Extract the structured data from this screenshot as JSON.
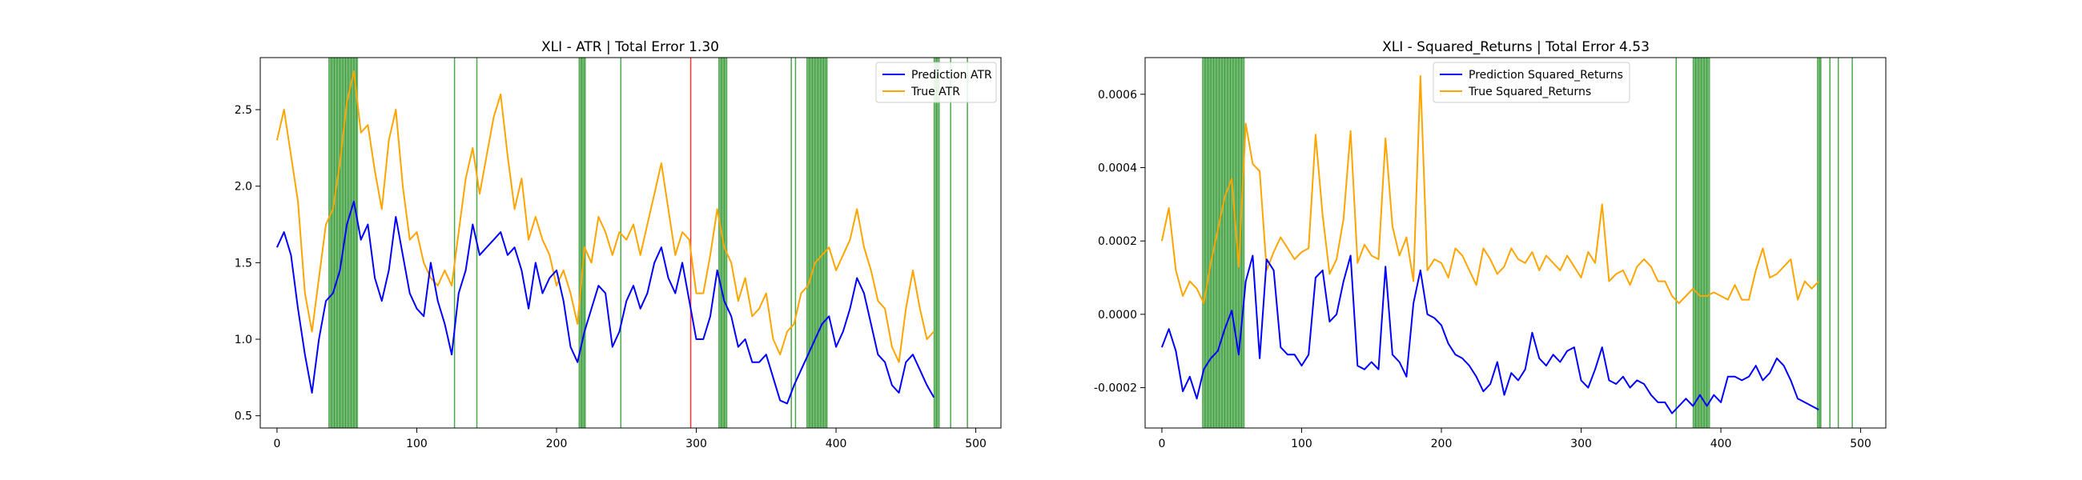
{
  "chart_data": [
    {
      "type": "line",
      "title": "XLI - ATR | Total Error 1.30",
      "xlabel": "",
      "ylabel": "",
      "xlim": [
        -12,
        518
      ],
      "ylim": [
        0.42,
        2.84
      ],
      "xticks": [
        0,
        100,
        200,
        300,
        400,
        500
      ],
      "yticks": [
        0.5,
        1.0,
        1.5,
        2.0,
        2.5
      ],
      "ytick_format": "1",
      "grid": false,
      "legend": "top-right",
      "colors": {
        "prediction": "#0000ff",
        "true": "#ffa500",
        "green_marker": "#008000",
        "red_marker": "#ff0000"
      },
      "green_bands": [
        [
          37,
          58
        ],
        [
          216,
          221
        ],
        [
          316,
          322
        ],
        [
          379,
          394
        ],
        [
          470,
          474
        ]
      ],
      "green_lines": [
        127,
        143,
        246,
        368,
        371,
        482,
        494
      ],
      "red_lines": [
        296
      ],
      "series": [
        {
          "name": "Prediction ATR",
          "color": "#0000ff",
          "x": [
            0,
            5,
            10,
            15,
            20,
            25,
            30,
            35,
            40,
            45,
            50,
            55,
            60,
            65,
            70,
            75,
            80,
            85,
            90,
            95,
            100,
            105,
            110,
            115,
            120,
            125,
            130,
            135,
            140,
            145,
            150,
            155,
            160,
            165,
            170,
            175,
            180,
            185,
            190,
            195,
            200,
            205,
            210,
            215,
            220,
            225,
            230,
            235,
            240,
            245,
            250,
            255,
            260,
            265,
            270,
            275,
            280,
            285,
            290,
            295,
            300,
            305,
            310,
            315,
            320,
            325,
            330,
            335,
            340,
            345,
            350,
            355,
            360,
            365,
            370,
            375,
            380,
            385,
            390,
            395,
            400,
            405,
            410,
            415,
            420,
            425,
            430,
            435,
            440,
            445,
            450,
            455,
            460,
            465,
            470
          ],
          "values": [
            1.6,
            1.7,
            1.55,
            1.2,
            0.9,
            0.65,
            1.0,
            1.25,
            1.3,
            1.45,
            1.75,
            1.9,
            1.65,
            1.75,
            1.4,
            1.25,
            1.45,
            1.8,
            1.55,
            1.3,
            1.2,
            1.15,
            1.5,
            1.25,
            1.1,
            0.9,
            1.3,
            1.45,
            1.75,
            1.55,
            1.6,
            1.65,
            1.7,
            1.55,
            1.6,
            1.45,
            1.2,
            1.5,
            1.3,
            1.4,
            1.45,
            1.25,
            0.95,
            0.85,
            1.05,
            1.2,
            1.35,
            1.3,
            0.95,
            1.05,
            1.25,
            1.35,
            1.2,
            1.3,
            1.5,
            1.6,
            1.4,
            1.3,
            1.5,
            1.25,
            1.0,
            1.0,
            1.15,
            1.45,
            1.25,
            1.15,
            0.95,
            1.0,
            0.85,
            0.85,
            0.9,
            0.75,
            0.6,
            0.58,
            0.7,
            0.8,
            0.9,
            1.0,
            1.1,
            1.15,
            0.95,
            1.05,
            1.2,
            1.4,
            1.3,
            1.1,
            0.9,
            0.85,
            0.7,
            0.65,
            0.85,
            0.9,
            0.8,
            0.7,
            0.62
          ]
        },
        {
          "name": "True ATR",
          "color": "#ffa500",
          "x": [
            0,
            5,
            10,
            15,
            20,
            25,
            30,
            35,
            40,
            45,
            50,
            55,
            60,
            65,
            70,
            75,
            80,
            85,
            90,
            95,
            100,
            105,
            110,
            115,
            120,
            125,
            130,
            135,
            140,
            145,
            150,
            155,
            160,
            165,
            170,
            175,
            180,
            185,
            190,
            195,
            200,
            205,
            210,
            215,
            220,
            225,
            230,
            235,
            240,
            245,
            250,
            255,
            260,
            265,
            270,
            275,
            280,
            285,
            290,
            295,
            300,
            305,
            310,
            315,
            320,
            325,
            330,
            335,
            340,
            345,
            350,
            355,
            360,
            365,
            370,
            375,
            380,
            385,
            390,
            395,
            400,
            405,
            410,
            415,
            420,
            425,
            430,
            435,
            440,
            445,
            450,
            455,
            460,
            465,
            470
          ],
          "values": [
            2.3,
            2.5,
            2.2,
            1.9,
            1.3,
            1.05,
            1.4,
            1.75,
            1.85,
            2.15,
            2.55,
            2.75,
            2.35,
            2.4,
            2.1,
            1.85,
            2.3,
            2.5,
            2.0,
            1.65,
            1.7,
            1.5,
            1.4,
            1.35,
            1.45,
            1.35,
            1.7,
            2.05,
            2.25,
            1.95,
            2.2,
            2.45,
            2.6,
            2.2,
            1.85,
            2.05,
            1.65,
            1.8,
            1.65,
            1.55,
            1.35,
            1.45,
            1.3,
            1.1,
            1.6,
            1.5,
            1.8,
            1.7,
            1.55,
            1.7,
            1.65,
            1.75,
            1.55,
            1.75,
            1.95,
            2.15,
            1.85,
            1.55,
            1.7,
            1.65,
            1.3,
            1.3,
            1.55,
            1.85,
            1.6,
            1.5,
            1.25,
            1.4,
            1.15,
            1.2,
            1.3,
            1.0,
            0.9,
            1.05,
            1.1,
            1.3,
            1.35,
            1.5,
            1.55,
            1.6,
            1.45,
            1.55,
            1.65,
            1.85,
            1.6,
            1.45,
            1.25,
            1.2,
            0.95,
            0.85,
            1.2,
            1.45,
            1.2,
            1.0,
            1.05
          ]
        }
      ]
    },
    {
      "type": "line",
      "title": "XLI - Squared_Returns | Total Error 4.53",
      "xlabel": "",
      "ylabel": "",
      "xlim": [
        -12,
        518
      ],
      "ylim": [
        -0.00031,
        0.0007
      ],
      "xticks": [
        0,
        100,
        200,
        300,
        400,
        500
      ],
      "yticks": [
        -0.0002,
        0.0,
        0.0002,
        0.0004,
        0.0006
      ],
      "ytick_format": "4",
      "grid": false,
      "legend": "top-center",
      "colors": {
        "prediction": "#0000ff",
        "true": "#ffa500",
        "green_marker": "#008000",
        "red_marker": "#ff0000"
      },
      "green_bands": [
        [
          29,
          59
        ],
        [
          380,
          392
        ],
        [
          469,
          472
        ]
      ],
      "green_lines": [
        368,
        478,
        484,
        494
      ],
      "red_lines": [],
      "series": [
        {
          "name": "Prediction Squared_Returns",
          "color": "#0000ff",
          "x": [
            0,
            5,
            10,
            15,
            20,
            25,
            30,
            35,
            40,
            45,
            50,
            55,
            60,
            65,
            70,
            75,
            80,
            85,
            90,
            95,
            100,
            105,
            110,
            115,
            120,
            125,
            130,
            135,
            140,
            145,
            150,
            155,
            160,
            165,
            170,
            175,
            180,
            185,
            190,
            195,
            200,
            205,
            210,
            215,
            220,
            225,
            230,
            235,
            240,
            245,
            250,
            255,
            260,
            265,
            270,
            275,
            280,
            285,
            290,
            295,
            300,
            305,
            310,
            315,
            320,
            325,
            330,
            335,
            340,
            345,
            350,
            355,
            360,
            365,
            370,
            375,
            380,
            385,
            390,
            395,
            400,
            405,
            410,
            415,
            420,
            425,
            430,
            435,
            440,
            445,
            450,
            455,
            460,
            465,
            470
          ],
          "values": [
            -9e-05,
            -4e-05,
            -0.0001,
            -0.00021,
            -0.00017,
            -0.00023,
            -0.00015,
            -0.00012,
            -0.0001,
            -4e-05,
            1e-05,
            -0.00011,
            9e-05,
            0.00016,
            -0.00012,
            0.00015,
            0.00012,
            -9e-05,
            -0.00011,
            -0.00011,
            -0.00014,
            -0.00011,
            0.0001,
            0.00012,
            -2e-05,
            0.0,
            9e-05,
            0.00016,
            -0.00014,
            -0.00015,
            -0.00013,
            -0.00015,
            0.00013,
            -0.00011,
            -0.00013,
            -0.00017,
            3e-05,
            0.00012,
            0.0,
            -1e-05,
            -3e-05,
            -8e-05,
            -0.00011,
            -0.00012,
            -0.00014,
            -0.00017,
            -0.00021,
            -0.00019,
            -0.00013,
            -0.00022,
            -0.00016,
            -0.00018,
            -0.00015,
            -5e-05,
            -0.00012,
            -0.00014,
            -0.00011,
            -0.00013,
            -0.0001,
            -9e-05,
            -0.00018,
            -0.0002,
            -0.00015,
            -9e-05,
            -0.00018,
            -0.00019,
            -0.00017,
            -0.0002,
            -0.00018,
            -0.00019,
            -0.00022,
            -0.00024,
            -0.00024,
            -0.00027,
            -0.00025,
            -0.00023,
            -0.00025,
            -0.00022,
            -0.00025,
            -0.00022,
            -0.00024,
            -0.00017,
            -0.00017,
            -0.00018,
            -0.00017,
            -0.00014,
            -0.00018,
            -0.00016,
            -0.00012,
            -0.00014,
            -0.00018,
            -0.00023,
            -0.00024,
            -0.00025,
            -0.00026
          ]
        },
        {
          "name": "True Squared_Returns",
          "color": "#ffa500",
          "x": [
            0,
            5,
            10,
            15,
            20,
            25,
            30,
            35,
            40,
            45,
            50,
            55,
            60,
            65,
            70,
            75,
            80,
            85,
            90,
            95,
            100,
            105,
            110,
            115,
            120,
            125,
            130,
            135,
            140,
            145,
            150,
            155,
            160,
            165,
            170,
            175,
            180,
            185,
            190,
            195,
            200,
            205,
            210,
            215,
            220,
            225,
            230,
            235,
            240,
            245,
            250,
            255,
            260,
            265,
            270,
            275,
            280,
            285,
            290,
            295,
            300,
            305,
            310,
            315,
            320,
            325,
            330,
            335,
            340,
            345,
            350,
            355,
            360,
            365,
            370,
            375,
            380,
            385,
            390,
            395,
            400,
            405,
            410,
            415,
            420,
            425,
            430,
            435,
            440,
            445,
            450,
            455,
            460,
            465,
            470
          ],
          "values": [
            0.0002,
            0.00029,
            0.00012,
            5e-05,
            9e-05,
            7e-05,
            3e-05,
            0.00014,
            0.00023,
            0.00032,
            0.00037,
            0.00013,
            0.00052,
            0.00041,
            0.00039,
            0.00012,
            0.00017,
            0.00021,
            0.00018,
            0.00015,
            0.00017,
            0.00018,
            0.00049,
            0.00027,
            0.00011,
            0.00015,
            0.00026,
            0.0005,
            0.00014,
            0.00019,
            0.00016,
            0.00015,
            0.00048,
            0.00024,
            0.00016,
            0.00021,
            9e-05,
            0.00065,
            0.00012,
            0.00015,
            0.00014,
            0.0001,
            0.00018,
            0.00016,
            0.00012,
            8e-05,
            0.00018,
            0.00015,
            0.00011,
            0.00013,
            0.00018,
            0.00015,
            0.00014,
            0.00017,
            0.00012,
            0.00016,
            0.00014,
            0.00012,
            0.00016,
            0.00013,
            0.0001,
            0.00017,
            0.00014,
            0.0003,
            9e-05,
            0.00011,
            0.00012,
            8e-05,
            0.00013,
            0.00015,
            0.00013,
            9e-05,
            9e-05,
            5e-05,
            3e-05,
            5e-05,
            7e-05,
            5e-05,
            5e-05,
            6e-05,
            5e-05,
            4e-05,
            8e-05,
            4e-05,
            4e-05,
            0.00012,
            0.00018,
            0.0001,
            0.00011,
            0.00013,
            0.00015,
            4e-05,
            9e-05,
            7e-05,
            9e-05
          ]
        }
      ]
    }
  ]
}
